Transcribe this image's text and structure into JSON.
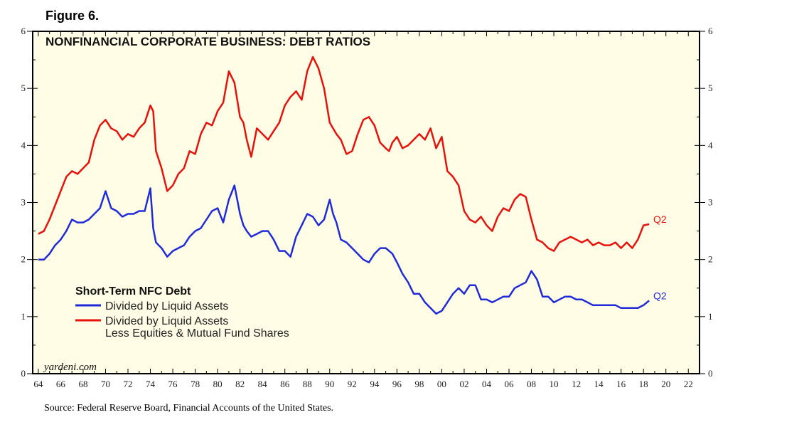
{
  "figure_label": "Figure 6.",
  "source_note": "Source: Federal Reserve Board, Financial Accounts of the United States.",
  "watermark": "yardeni.com",
  "colors": {
    "background": "#fffde6",
    "red_series": "#e8120c",
    "blue_series": "#1f2bd8"
  },
  "chart_data": {
    "type": "line",
    "title": "NONFINANCIAL CORPORATE BUSINESS: DEBT RATIOS",
    "xlabel": "",
    "ylabel": "",
    "xlim": [
      1963.5,
      2023
    ],
    "ylim": [
      0,
      6
    ],
    "yticks": [
      0,
      1,
      2,
      3,
      4,
      5,
      6
    ],
    "xtick_labels": [
      "64",
      "66",
      "68",
      "70",
      "72",
      "74",
      "76",
      "78",
      "80",
      "82",
      "84",
      "86",
      "88",
      "90",
      "92",
      "94",
      "96",
      "98",
      "00",
      "02",
      "04",
      "06",
      "08",
      "10",
      "12",
      "14",
      "16",
      "18",
      "20",
      "22"
    ],
    "xtick_years": [
      1964,
      1966,
      1968,
      1970,
      1972,
      1974,
      1976,
      1978,
      1980,
      1982,
      1984,
      1986,
      1988,
      1990,
      1992,
      1994,
      1996,
      1998,
      2000,
      2002,
      2004,
      2006,
      2008,
      2010,
      2012,
      2014,
      2016,
      2018,
      2020,
      2022
    ],
    "legend_title": "Short-Term NFC Debt",
    "series": [
      {
        "name": "Divided by Liquid Assets Less Equities & Mutual Fund Shares",
        "legend_lines": [
          "Divided by Liquid Assets",
          "Less Equities & Mutual Fund Shares"
        ],
        "color": "red",
        "end_label": "Q2",
        "x": [
          1964,
          1964.5,
          1965,
          1965.5,
          1966,
          1966.5,
          1967,
          1967.5,
          1968,
          1968.5,
          1969,
          1969.5,
          1970,
          1970.5,
          1971,
          1971.5,
          1972,
          1972.5,
          1973,
          1973.5,
          1974,
          1974.25,
          1974.5,
          1975,
          1975.5,
          1976,
          1976.5,
          1977,
          1977.5,
          1978,
          1978.5,
          1979,
          1979.5,
          1980,
          1980.5,
          1981,
          1981.5,
          1982,
          1982.3,
          1982.6,
          1983,
          1983.5,
          1984,
          1984.5,
          1985,
          1985.5,
          1986,
          1986.5,
          1987,
          1987.5,
          1988,
          1988.5,
          1989,
          1989.5,
          1990,
          1990.3,
          1990.6,
          1991,
          1991.5,
          1992,
          1992.5,
          1993,
          1993.5,
          1994,
          1994.5,
          1995,
          1995.3,
          1995.6,
          1996,
          1996.5,
          1997,
          1997.5,
          1998,
          1998.5,
          1999,
          1999.5,
          2000,
          2000.5,
          2001,
          2001.5,
          2002,
          2002.5,
          2003,
          2003.5,
          2004,
          2004.5,
          2005,
          2005.5,
          2006,
          2006.5,
          2007,
          2007.5,
          2008,
          2008.5,
          2009,
          2009.5,
          2010,
          2010.5,
          2011,
          2011.5,
          2012,
          2012.5,
          2013,
          2013.5,
          2014,
          2014.5,
          2015,
          2015.5,
          2016,
          2016.5,
          2017,
          2017.5,
          2018,
          2018.5
        ],
        "values": [
          2.45,
          2.5,
          2.7,
          2.95,
          3.2,
          3.45,
          3.55,
          3.5,
          3.6,
          3.7,
          4.1,
          4.35,
          4.45,
          4.3,
          4.25,
          4.1,
          4.2,
          4.15,
          4.3,
          4.4,
          4.7,
          4.6,
          3.9,
          3.6,
          3.2,
          3.3,
          3.5,
          3.6,
          3.9,
          3.85,
          4.2,
          4.4,
          4.35,
          4.6,
          4.75,
          5.3,
          5.1,
          4.5,
          4.4,
          4.1,
          3.8,
          4.3,
          4.2,
          4.1,
          4.25,
          4.4,
          4.7,
          4.85,
          4.95,
          4.8,
          5.3,
          5.55,
          5.35,
          5.0,
          4.4,
          4.3,
          4.2,
          4.1,
          3.85,
          3.9,
          4.2,
          4.45,
          4.5,
          4.35,
          4.05,
          3.95,
          3.9,
          4.05,
          4.15,
          3.95,
          4.0,
          4.1,
          4.2,
          4.1,
          4.3,
          3.95,
          4.15,
          3.55,
          3.45,
          3.3,
          2.85,
          2.7,
          2.65,
          2.75,
          2.6,
          2.5,
          2.75,
          2.9,
          2.85,
          3.05,
          3.15,
          3.1,
          2.7,
          2.35,
          2.3,
          2.2,
          2.15,
          2.3,
          2.35,
          2.4,
          2.35,
          2.3,
          2.35,
          2.25,
          2.3,
          2.25,
          2.25,
          2.3,
          2.2,
          2.3,
          2.2,
          2.35,
          2.6,
          2.62
        ],
        "value_unit": "ratio"
      },
      {
        "name": "Divided by Liquid Assets",
        "legend_lines": [
          "Divided by Liquid Assets"
        ],
        "color": "blue",
        "end_label": "Q2",
        "x": [
          1964,
          1964.5,
          1965,
          1965.5,
          1966,
          1966.5,
          1967,
          1967.5,
          1968,
          1968.5,
          1969,
          1969.5,
          1970,
          1970.5,
          1971,
          1971.5,
          1972,
          1972.5,
          1973,
          1973.5,
          1974,
          1974.25,
          1974.5,
          1975,
          1975.5,
          1976,
          1976.5,
          1977,
          1977.5,
          1978,
          1978.5,
          1979,
          1979.5,
          1980,
          1980.5,
          1981,
          1981.5,
          1982,
          1982.3,
          1982.6,
          1983,
          1983.5,
          1984,
          1984.5,
          1985,
          1985.5,
          1986,
          1986.5,
          1987,
          1987.5,
          1988,
          1988.5,
          1989,
          1989.5,
          1990,
          1990.3,
          1990.6,
          1991,
          1991.5,
          1992,
          1992.5,
          1993,
          1993.5,
          1994,
          1994.5,
          1995,
          1995.3,
          1995.6,
          1996,
          1996.5,
          1997,
          1997.5,
          1998,
          1998.5,
          1999,
          1999.5,
          2000,
          2000.5,
          2001,
          2001.5,
          2002,
          2002.5,
          2003,
          2003.5,
          2004,
          2004.5,
          2005,
          2005.5,
          2006,
          2006.5,
          2007,
          2007.5,
          2008,
          2008.5,
          2009,
          2009.5,
          2010,
          2010.5,
          2011,
          2011.5,
          2012,
          2012.5,
          2013,
          2013.5,
          2014,
          2014.5,
          2015,
          2015.5,
          2016,
          2016.5,
          2017,
          2017.5,
          2018,
          2018.5
        ],
        "values": [
          2.0,
          2.0,
          2.1,
          2.25,
          2.35,
          2.5,
          2.7,
          2.65,
          2.65,
          2.7,
          2.8,
          2.9,
          3.2,
          2.9,
          2.85,
          2.75,
          2.8,
          2.8,
          2.85,
          2.85,
          3.25,
          2.55,
          2.3,
          2.2,
          2.05,
          2.15,
          2.2,
          2.25,
          2.4,
          2.5,
          2.55,
          2.7,
          2.85,
          2.9,
          2.65,
          3.05,
          3.3,
          2.8,
          2.6,
          2.5,
          2.4,
          2.45,
          2.5,
          2.5,
          2.35,
          2.15,
          2.15,
          2.05,
          2.4,
          2.6,
          2.8,
          2.75,
          2.6,
          2.7,
          3.05,
          2.8,
          2.65,
          2.35,
          2.3,
          2.2,
          2.1,
          2.0,
          1.95,
          2.1,
          2.2,
          2.2,
          2.15,
          2.1,
          1.95,
          1.75,
          1.6,
          1.4,
          1.4,
          1.25,
          1.15,
          1.05,
          1.1,
          1.25,
          1.4,
          1.5,
          1.4,
          1.55,
          1.55,
          1.3,
          1.3,
          1.25,
          1.3,
          1.35,
          1.35,
          1.5,
          1.55,
          1.6,
          1.8,
          1.65,
          1.35,
          1.35,
          1.25,
          1.3,
          1.35,
          1.35,
          1.3,
          1.3,
          1.25,
          1.2,
          1.2,
          1.2,
          1.2,
          1.2,
          1.15,
          1.15,
          1.15,
          1.15,
          1.2,
          1.28
        ],
        "value_unit": "ratio"
      }
    ]
  }
}
